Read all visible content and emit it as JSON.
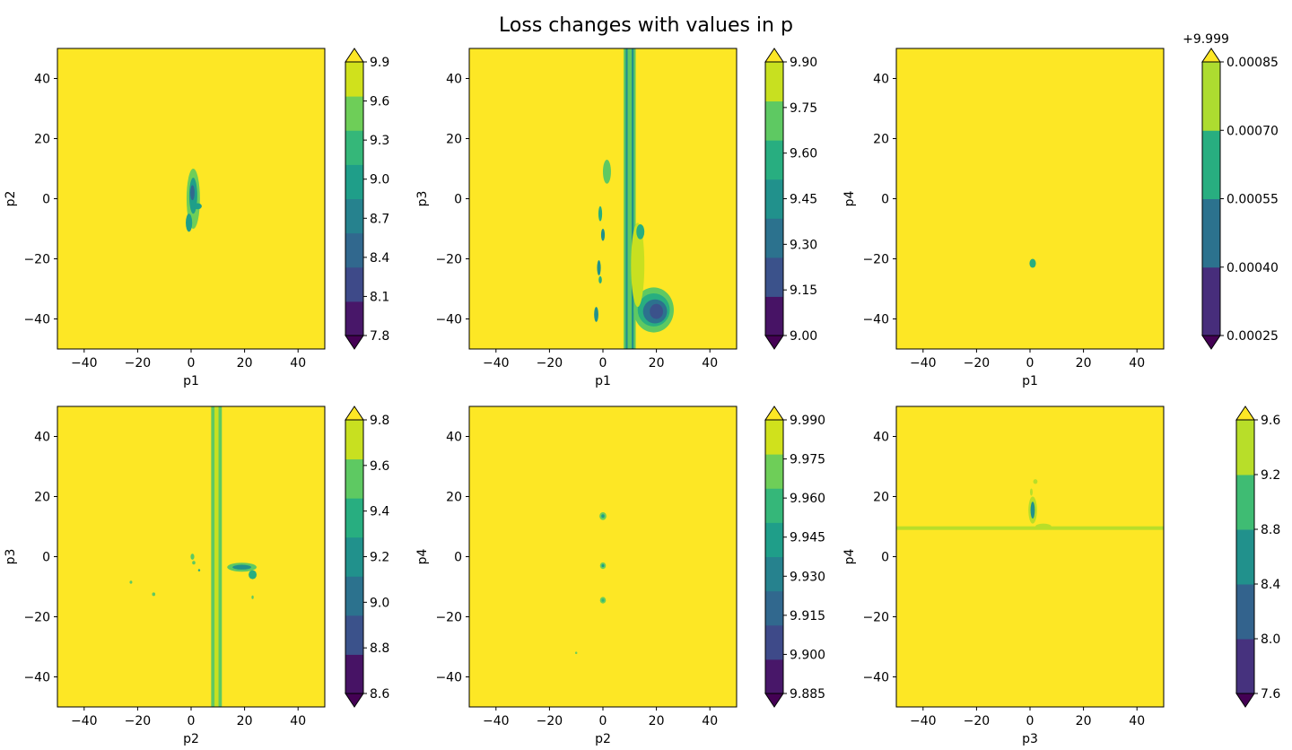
{
  "title": "Loss changes with values in p",
  "colors": {
    "viridis": [
      "#440154",
      "#46327e",
      "#365c8d",
      "#277f8e",
      "#1fa187",
      "#4ac16d",
      "#a0da39",
      "#fde725"
    ],
    "plot_background": "#fde725"
  },
  "chart_data": [
    {
      "type": "heatmap",
      "xlabel": "p1",
      "ylabel": "p2",
      "xlim": [
        -50,
        50
      ],
      "ylim": [
        -50,
        50
      ],
      "xticks": [
        "−40",
        "−20",
        "0",
        "20",
        "40"
      ],
      "yticks": [
        "−40",
        "−20",
        "0",
        "20",
        "40"
      ],
      "colorbar": {
        "offset": "",
        "levels": [
          7.8,
          8.1,
          8.4,
          8.7,
          9.0,
          9.3,
          9.6,
          9.9
        ],
        "ticks": [
          "7.8",
          "8.1",
          "8.4",
          "8.7",
          "9.0",
          "9.3",
          "9.6",
          "9.9"
        ],
        "colors": [
          "#481769",
          "#3e4a89",
          "#31688e",
          "#26828e",
          "#1f9e89",
          "#35b779",
          "#6ece58",
          "#d0e11c"
        ]
      },
      "features": [
        {
          "kind": "blob",
          "x": 0.8,
          "y": 0,
          "rx": 2.5,
          "ry": 10,
          "level": 6
        },
        {
          "kind": "blob",
          "x": 0.8,
          "y": 1,
          "rx": 1.5,
          "ry": 6,
          "level": 4
        },
        {
          "kind": "blob",
          "x": 0.5,
          "y": 2,
          "rx": 0.8,
          "ry": 2.5,
          "level": 2
        },
        {
          "kind": "blob",
          "x": -0.8,
          "y": -8,
          "rx": 1.2,
          "ry": 3,
          "level": 4
        },
        {
          "kind": "blob",
          "x": 2.5,
          "y": -2.5,
          "rx": 1.5,
          "ry": 1,
          "level": 4
        }
      ]
    },
    {
      "type": "heatmap",
      "xlabel": "p1",
      "ylabel": "p3",
      "xlim": [
        -50,
        50
      ],
      "ylim": [
        -50,
        50
      ],
      "xticks": [
        "−40",
        "−20",
        "0",
        "20",
        "40"
      ],
      "yticks": [
        "−40",
        "−20",
        "0",
        "20",
        "40"
      ],
      "colorbar": {
        "offset": "",
        "levels": [
          9.0,
          9.15,
          9.3,
          9.45,
          9.6,
          9.75,
          9.9
        ],
        "ticks": [
          "9.00",
          "9.15",
          "9.30",
          "9.45",
          "9.60",
          "9.75",
          "9.90"
        ],
        "colors": [
          "#471365",
          "#3b528b",
          "#2c728e",
          "#21918c",
          "#28ae80",
          "#5ec962",
          "#c8e020"
        ]
      },
      "features": [
        {
          "kind": "vband",
          "x": 10,
          "width": 4.5,
          "level": 5
        },
        {
          "kind": "vband",
          "x": 10,
          "width": 3,
          "level": 3
        },
        {
          "kind": "vband",
          "x": 10,
          "width": 1.5,
          "level": 5
        },
        {
          "kind": "blob",
          "x": 19,
          "y": -37,
          "rx": 7.5,
          "ry": 7.5,
          "level": 5
        },
        {
          "kind": "blob",
          "x": 19,
          "y": -37,
          "rx": 6,
          "ry": 5.5,
          "level": 4
        },
        {
          "kind": "blob",
          "x": 19.5,
          "y": -37.5,
          "rx": 4.5,
          "ry": 4,
          "level": 2
        },
        {
          "kind": "blob",
          "x": 20,
          "y": -37.5,
          "rx": 2.5,
          "ry": 2.5,
          "level": 1
        },
        {
          "kind": "blob",
          "x": 13,
          "y": -22,
          "rx": 2.5,
          "ry": 14,
          "level": 6
        },
        {
          "kind": "blob",
          "x": 1.5,
          "y": 9,
          "rx": 1.5,
          "ry": 4,
          "level": 5
        },
        {
          "kind": "blob",
          "x": 14,
          "y": -11,
          "rx": 1.5,
          "ry": 2.5,
          "level": 4
        },
        {
          "kind": "blob",
          "x": 0,
          "y": -12,
          "rx": 0.7,
          "ry": 2,
          "level": 3
        },
        {
          "kind": "blob",
          "x": -1,
          "y": -5,
          "rx": 0.7,
          "ry": 2.5,
          "level": 4
        },
        {
          "kind": "blob",
          "x": -1.5,
          "y": -23,
          "rx": 0.7,
          "ry": 2.5,
          "level": 3
        },
        {
          "kind": "blob",
          "x": -2.5,
          "y": -38.5,
          "rx": 0.8,
          "ry": 2.5,
          "level": 3
        },
        {
          "kind": "blob",
          "x": -1,
          "y": -27,
          "rx": 0.6,
          "ry": 1.2,
          "level": 4
        }
      ]
    },
    {
      "type": "heatmap",
      "xlabel": "p1",
      "ylabel": "p4",
      "xlim": [
        -50,
        50
      ],
      "ylim": [
        -50,
        50
      ],
      "xticks": [
        "−40",
        "−20",
        "0",
        "20",
        "40"
      ],
      "yticks": [
        "−40",
        "−20",
        "0",
        "20",
        "40"
      ],
      "colorbar": {
        "offset": "+9.999",
        "levels": [
          0.00025,
          0.0004,
          0.00055,
          0.0007,
          0.00085
        ],
        "ticks": [
          "0.00025",
          "0.00040",
          "0.00055",
          "0.00070",
          "0.00085"
        ],
        "colors": [
          "#472d7b",
          "#2c728e",
          "#28ae80",
          "#addc30"
        ]
      },
      "features": [
        {
          "kind": "blob",
          "x": 1,
          "y": -21.5,
          "rx": 1.2,
          "ry": 1.5,
          "level": 2
        }
      ]
    },
    {
      "type": "heatmap",
      "xlabel": "p2",
      "ylabel": "p3",
      "xlim": [
        -50,
        50
      ],
      "ylim": [
        -50,
        50
      ],
      "xticks": [
        "−40",
        "−20",
        "0",
        "20",
        "40"
      ],
      "yticks": [
        "−40",
        "−20",
        "0",
        "20",
        "40"
      ],
      "colorbar": {
        "offset": "",
        "levels": [
          8.6,
          8.8,
          9.0,
          9.2,
          9.4,
          9.6,
          9.8
        ],
        "ticks": [
          "8.6",
          "8.8",
          "9.0",
          "9.2",
          "9.4",
          "9.6",
          "9.8"
        ],
        "colors": [
          "#471365",
          "#3b528b",
          "#2c728e",
          "#21918c",
          "#28ae80",
          "#5ec962",
          "#c8e020"
        ]
      },
      "features": [
        {
          "kind": "vband",
          "x": 9.5,
          "width": 4,
          "level": 5
        },
        {
          "kind": "vband",
          "x": 9.5,
          "width": 1.5,
          "level": 6
        },
        {
          "kind": "blob",
          "x": 19,
          "y": -3.5,
          "rx": 5.5,
          "ry": 1.5,
          "level": 5
        },
        {
          "kind": "blob",
          "x": 19,
          "y": -3.5,
          "rx": 3.5,
          "ry": 0.8,
          "level": 3
        },
        {
          "kind": "blob",
          "x": 23,
          "y": -6,
          "rx": 1.5,
          "ry": 1.5,
          "level": 4
        },
        {
          "kind": "blob",
          "x": 0.5,
          "y": 0,
          "rx": 0.7,
          "ry": 1,
          "level": 5
        },
        {
          "kind": "blob",
          "x": 1,
          "y": -2,
          "rx": 0.6,
          "ry": 0.6,
          "level": 5
        },
        {
          "kind": "blob",
          "x": -14,
          "y": -12.5,
          "rx": 0.6,
          "ry": 0.6,
          "level": 5
        },
        {
          "kind": "blob",
          "x": -22.5,
          "y": -8.5,
          "rx": 0.5,
          "ry": 0.5,
          "level": 5
        },
        {
          "kind": "blob",
          "x": 23,
          "y": -13.5,
          "rx": 0.4,
          "ry": 0.6,
          "level": 5
        },
        {
          "kind": "blob",
          "x": 3,
          "y": -4.5,
          "rx": 0.4,
          "ry": 0.4,
          "level": 4
        }
      ]
    },
    {
      "type": "heatmap",
      "xlabel": "p2",
      "ylabel": "p4",
      "xlim": [
        -50,
        50
      ],
      "ylim": [
        -50,
        50
      ],
      "xticks": [
        "−40",
        "−20",
        "0",
        "20",
        "40"
      ],
      "yticks": [
        "−40",
        "−20",
        "0",
        "20",
        "40"
      ],
      "colorbar": {
        "offset": "",
        "levels": [
          9.885,
          9.9,
          9.915,
          9.93,
          9.945,
          9.96,
          9.975,
          9.99
        ],
        "ticks": [
          "9.885",
          "9.900",
          "9.915",
          "9.930",
          "9.945",
          "9.960",
          "9.975",
          "9.990"
        ],
        "colors": [
          "#481769",
          "#3e4a89",
          "#31688e",
          "#26828e",
          "#1f9e89",
          "#35b779",
          "#6ece58",
          "#d0e11c"
        ]
      },
      "features": [
        {
          "kind": "blob",
          "x": 0,
          "y": 13.5,
          "rx": 1.3,
          "ry": 1.3,
          "level": 6
        },
        {
          "kind": "blob",
          "x": 0,
          "y": 13.5,
          "rx": 0.6,
          "ry": 0.6,
          "level": 4
        },
        {
          "kind": "blob",
          "x": 0,
          "y": -3,
          "rx": 1.1,
          "ry": 1.1,
          "level": 6
        },
        {
          "kind": "blob",
          "x": 0,
          "y": -3,
          "rx": 0.5,
          "ry": 0.5,
          "level": 4
        },
        {
          "kind": "blob",
          "x": 0,
          "y": -14.5,
          "rx": 1.1,
          "ry": 1.1,
          "level": 6
        },
        {
          "kind": "blob",
          "x": 0,
          "y": -14.5,
          "rx": 0.5,
          "ry": 0.5,
          "level": 5
        },
        {
          "kind": "blob",
          "x": -10,
          "y": -32,
          "rx": 0.4,
          "ry": 0.4,
          "level": 6
        }
      ]
    },
    {
      "type": "heatmap",
      "xlabel": "p3",
      "ylabel": "p4",
      "xlim": [
        -50,
        50
      ],
      "ylim": [
        -50,
        50
      ],
      "xticks": [
        "−40",
        "−20",
        "0",
        "20",
        "40"
      ],
      "yticks": [
        "−40",
        "−20",
        "0",
        "20",
        "40"
      ],
      "colorbar": {
        "offset": "",
        "levels": [
          7.6,
          8.0,
          8.4,
          8.8,
          9.2,
          9.6
        ],
        "ticks": [
          "7.6",
          "8.0",
          "8.4",
          "8.8",
          "9.2",
          "9.6"
        ],
        "colors": [
          "#46327e",
          "#33638d",
          "#21918c",
          "#3fbc73",
          "#b8de29"
        ]
      },
      "features": [
        {
          "kind": "hband",
          "y": 9.5,
          "height": 1.2,
          "level": 4
        },
        {
          "kind": "blob",
          "x": 5,
          "y": 10,
          "rx": 3,
          "ry": 1,
          "level": 4
        },
        {
          "kind": "blob",
          "x": 1,
          "y": 15.5,
          "rx": 1.6,
          "ry": 4.5,
          "level": 4
        },
        {
          "kind": "blob",
          "x": 1,
          "y": 15.5,
          "rx": 0.8,
          "ry": 2.8,
          "level": 2
        },
        {
          "kind": "blob",
          "x": 2,
          "y": 25,
          "rx": 0.8,
          "ry": 0.8,
          "level": 4
        },
        {
          "kind": "blob",
          "x": 0.5,
          "y": 21.5,
          "rx": 0.5,
          "ry": 1.2,
          "level": 4
        }
      ]
    }
  ]
}
